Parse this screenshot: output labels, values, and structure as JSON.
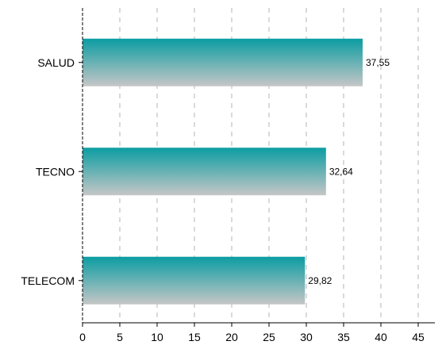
{
  "chart_data": {
    "type": "bar",
    "orientation": "horizontal",
    "categories": [
      "SALUD",
      "TECNO",
      "TELECOM"
    ],
    "values": [
      37.55,
      32.64,
      29.82
    ],
    "data_labels": [
      "37,55",
      "32,64",
      "29,82"
    ],
    "title": "",
    "xlabel": "",
    "ylabel": "",
    "xlim": [
      0,
      47
    ],
    "xticks": [
      0,
      5,
      10,
      15,
      20,
      25,
      30,
      35,
      40,
      45
    ],
    "grid": "vertical-dashed",
    "legend": "none",
    "colors": {
      "bar_top": "#0b9da2",
      "bar_bottom": "#c6c6c6",
      "grid": "#c0c0c0",
      "axis": "#000000"
    }
  }
}
